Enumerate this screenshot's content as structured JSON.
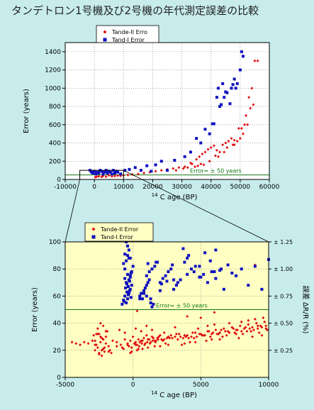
{
  "title": "タンデトロン1号機及び2号機の年代測定誤差の比較",
  "colors": {
    "tande2": "#e01010",
    "tand1": "#1010c0",
    "error_line": "#117711",
    "bottom_bg": "#ffffc4",
    "top_bg": "#ffffff"
  },
  "chart_data": [
    {
      "type": "scatter",
      "xlabel_sup": "14",
      "xlabel": "C age (BP)",
      "ylabel": "Error (years)",
      "xlim": [
        -10000,
        60000
      ],
      "ylim": [
        0,
        1500
      ],
      "xticks": [
        "-10000",
        "0",
        "10000",
        "20000",
        "30000",
        "40000",
        "50000",
        "60000"
      ],
      "yticks": [
        "0",
        "200",
        "400",
        "600",
        "800",
        "1000",
        "1200",
        "1400"
      ],
      "legend": {
        "placement": "top-left-outside",
        "entries": [
          "Tande-II Erro",
          "Tand-I Error"
        ]
      },
      "annotation": "Error= ± 50 years",
      "error_line_y": 50,
      "grid": true,
      "series": [
        {
          "name": "Tande-II Erro",
          "x": [
            300,
            800,
            1500,
            2500,
            3000,
            4000,
            5000,
            6000,
            7000,
            8000,
            9000,
            10000,
            11500,
            13000,
            15000,
            17000,
            19000,
            21000,
            23000,
            25000,
            27000,
            29000,
            31000,
            33000,
            35000,
            36000,
            37000,
            38000,
            39000,
            40000,
            41000,
            42000,
            43000,
            44000,
            45000,
            46000,
            47000,
            48000,
            49000,
            50000,
            51000,
            52000,
            53000,
            54000,
            55000,
            56000,
            45500,
            47500,
            50500,
            52500,
            42500,
            44500,
            48000,
            49500,
            51500,
            53500,
            54500,
            39500,
            41500,
            37500,
            36500,
            35500,
            34500,
            30500,
            28000,
            33500,
            32000
          ],
          "y": [
            25,
            30,
            35,
            28,
            40,
            30,
            45,
            35,
            38,
            42,
            40,
            45,
            50,
            55,
            60,
            70,
            80,
            90,
            100,
            110,
            120,
            130,
            140,
            180,
            220,
            250,
            280,
            300,
            330,
            350,
            370,
            320,
            300,
            380,
            400,
            420,
            450,
            380,
            420,
            450,
            500,
            700,
            900,
            1000,
            1300,
            1300,
            350,
            380,
            560,
            600,
            250,
            300,
            430,
            560,
            600,
            780,
            820,
            200,
            260,
            160,
            170,
            150,
            140,
            120,
            100,
            170,
            130
          ]
        },
        {
          "name": "Tand-I Error",
          "x": [
            -1500,
            -1000,
            -500,
            0,
            500,
            1000,
            1500,
            2000,
            2500,
            3000,
            3500,
            4000,
            4500,
            5000,
            5500,
            6000,
            6500,
            7000,
            7500,
            8000,
            9000,
            10500,
            12000,
            14000,
            16000,
            18000,
            19500,
            21000,
            23000,
            25000,
            27500,
            31000,
            33000,
            35000,
            36500,
            38000,
            39500,
            40500,
            41000,
            42000,
            42500,
            43500,
            44000,
            45000,
            46500,
            47000,
            48000,
            48500,
            49000,
            50000,
            50500,
            51000,
            44500,
            43000,
            45500,
            47500
          ],
          "y": [
            100,
            80,
            70,
            90,
            60,
            80,
            70,
            100,
            90,
            60,
            80,
            100,
            70,
            90,
            80,
            60,
            100,
            70,
            90,
            80,
            60,
            100,
            110,
            130,
            100,
            150,
            90,
            160,
            200,
            100,
            210,
            250,
            300,
            450,
            400,
            550,
            500,
            610,
            610,
            900,
            1000,
            820,
            1050,
            960,
            830,
            1000,
            1100,
            1000,
            1050,
            1200,
            1400,
            1350,
            900,
            800,
            950,
            1040
          ]
        }
      ]
    },
    {
      "type": "scatter",
      "xlabel_sup": "14",
      "xlabel": "C age (BP)",
      "ylabel": "Error (years)",
      "y2label": "誤差 ΔR/R (%)",
      "xlim": [
        -5000,
        10000
      ],
      "ylim": [
        0,
        100
      ],
      "xticks": [
        "-5000",
        "0",
        "5000",
        "10000"
      ],
      "yticks": [
        "0",
        "20",
        "40",
        "60",
        "80",
        "100"
      ],
      "y2ticks": [
        "± 0.25",
        "± 0.50",
        "± 0.75",
        "± 1.00",
        "± 1.25"
      ],
      "legend": {
        "placement": "top-left",
        "entries": [
          "Tande-II Error",
          "Tand-I Error"
        ]
      },
      "annotation": "Error= ± 50 years",
      "error_line_y": 50,
      "grid": true,
      "series": [
        {
          "name": "Tande-II Error",
          "x": [
            -4500,
            -4200,
            -3900,
            -3600,
            -3300,
            -3000,
            -2800,
            -2600,
            -2400,
            -2200,
            -2000,
            -1800,
            -1500,
            -1200,
            -900,
            -600,
            -400,
            -200,
            0,
            200,
            400,
            600,
            800,
            1000,
            1200,
            1400,
            1600,
            1800,
            2000,
            2300,
            2600,
            2900,
            3200,
            3500,
            3800,
            4100,
            4400,
            4700,
            5000,
            5300,
            5600,
            5900,
            6200,
            6500,
            6800,
            7100,
            7400,
            7700,
            8000,
            8300,
            8600,
            8900,
            9200,
            9500,
            9800,
            -2300,
            -2100,
            -2500,
            -2700,
            -2400,
            -2200,
            -2600,
            -700,
            -300,
            100,
            300,
            500,
            700,
            900,
            1100,
            1300,
            1500,
            1700,
            1900,
            2100,
            2500,
            2800,
            3100,
            3400,
            3700,
            4000,
            4300,
            4600,
            4900,
            5200,
            5500,
            5800,
            6100,
            6400,
            6700,
            7000,
            7300,
            7600,
            7900,
            8200,
            8500,
            8800,
            9100,
            9400,
            9700,
            -100,
            200,
            450,
            650,
            850,
            1050,
            1250,
            1450,
            1650,
            1850,
            2200,
            2700,
            3300,
            3900,
            4500,
            5100,
            5700,
            6300,
            6900,
            7500,
            8100,
            8700,
            9300,
            9900,
            -2000,
            -2500,
            -1900,
            -2300,
            -2800,
            -1000,
            -600,
            -2800,
            -2900,
            200,
            600,
            1000,
            1400,
            2300,
            3100,
            4800,
            5500,
            6000,
            7100,
            8000,
            8500,
            9000,
            9600,
            -2200,
            -1800,
            -1200,
            -800,
            -400,
            400,
            1600,
            2400,
            3600,
            4200,
            5800,
            6600,
            7600,
            8400,
            9200,
            9800,
            -1600,
            -2500,
            -2300,
            -2100,
            -1700,
            -200,
            -100,
            300,
            700,
            1100,
            2000,
            2600,
            3800,
            4600,
            5400,
            6400,
            7800,
            8800,
            9500,
            -2400,
            -2200,
            -2600,
            -2000,
            -2700,
            4000,
            5000,
            6000,
            9000,
            300
          ],
          "y": [
            26,
            25,
            24,
            26,
            25,
            27,
            24,
            22,
            30,
            28,
            25,
            23,
            27,
            26,
            24,
            28,
            25,
            27,
            30,
            26,
            28,
            27,
            29,
            31,
            28,
            30,
            27,
            29,
            31,
            28,
            30,
            29,
            32,
            30,
            31,
            29,
            33,
            30,
            32,
            31,
            34,
            33,
            32,
            35,
            34,
            33,
            36,
            35,
            34,
            37,
            36,
            35,
            38,
            37,
            36,
            20,
            22,
            18,
            24,
            26,
            28,
            32,
            21,
            23,
            25,
            24,
            26,
            27,
            25,
            28,
            26,
            29,
            27,
            30,
            28,
            29,
            31,
            30,
            32,
            29,
            31,
            30,
            33,
            32,
            31,
            34,
            32,
            35,
            33,
            36,
            34,
            37,
            35,
            38,
            36,
            39,
            37,
            40,
            38,
            41,
            22,
            24,
            23,
            25,
            24,
            26,
            25,
            27,
            26,
            28,
            27,
            29,
            28,
            30,
            29,
            31,
            30,
            32,
            31,
            33,
            32,
            34,
            33,
            35,
            30,
            32,
            34,
            29,
            27,
            35,
            33,
            20,
            31,
            36,
            34,
            38,
            35,
            33,
            37,
            36,
            38,
            39,
            40,
            41,
            42,
            43,
            44,
            21,
            19,
            23,
            22,
            24,
            21,
            23,
            25,
            24,
            26,
            28,
            30,
            32,
            34,
            36,
            38,
            18,
            17,
            16,
            19,
            20,
            18,
            19,
            20,
            21,
            22,
            23,
            24,
            25,
            26,
            27,
            28,
            29,
            30,
            31,
            40,
            38,
            36,
            34,
            32,
            45,
            44,
            48,
            83,
            49
          ]
        },
        {
          "name": "Tand-I Error",
          "x": [
            -500,
            -600,
            -400,
            -300,
            -200,
            -100,
            -700,
            -800,
            -350,
            -450,
            -250,
            -150,
            -550,
            -650,
            -500,
            -300,
            -200,
            -400,
            -600,
            -700,
            -100,
            0,
            -500,
            -300,
            -400,
            -200,
            -600,
            -350,
            -450,
            -250,
            -150,
            500,
            600,
            700,
            800,
            900,
            1000,
            1100,
            1200,
            1300,
            1400,
            1500,
            1000,
            1200,
            1400,
            1600,
            1800,
            2000,
            2200,
            2400,
            2600,
            2800,
            3000,
            3200,
            3500,
            3800,
            4000,
            4300,
            4600,
            4900,
            5200,
            5500,
            5800,
            6100,
            6400,
            6700,
            7000,
            7300,
            7600,
            8000,
            8500,
            9000,
            9500,
            10000,
            1100,
            1300,
            1700,
            2100,
            2500,
            2900,
            3300,
            3700,
            4100,
            4500,
            4900,
            5300,
            5700,
            6100,
            6500,
            -500,
            -400,
            -300,
            -600,
            -200,
            1000,
            800,
            500,
            2000,
            3000,
            4000,
            5000,
            6000
          ],
          "y": [
            55,
            60,
            58,
            62,
            65,
            68,
            57,
            54,
            61,
            63,
            64,
            59,
            66,
            56,
            70,
            72,
            74,
            76,
            80,
            84,
            78,
            82,
            86,
            88,
            90,
            75,
            73,
            67,
            69,
            71,
            77,
            60,
            62,
            58,
            64,
            66,
            68,
            70,
            72,
            55,
            52,
            54,
            75,
            78,
            80,
            82,
            85,
            70,
            73,
            75,
            78,
            80,
            65,
            68,
            72,
            85,
            88,
            80,
            82,
            74,
            76,
            70,
            78,
            73,
            79,
            65,
            83,
            77,
            75,
            80,
            68,
            82,
            65,
            87,
            84,
            58,
            85,
            69,
            71,
            83,
            70,
            95,
            90,
            78,
            82,
            92,
            86,
            94,
            80,
            100,
            97,
            94,
            91,
            88,
            60,
            62,
            58,
            64,
            72,
            76,
            74,
            78
          ]
        }
      ]
    }
  ]
}
